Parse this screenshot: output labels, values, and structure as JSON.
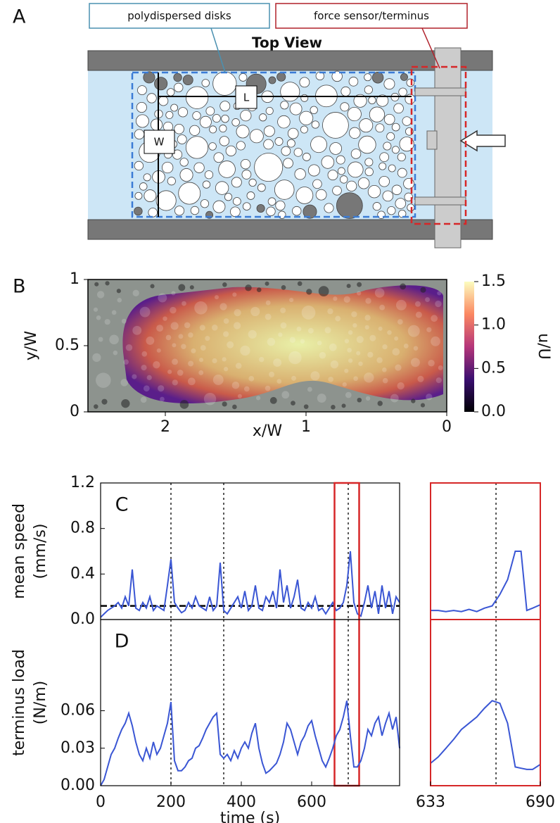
{
  "diagram": {
    "label": "A",
    "disks_label": "polydispersed disks",
    "sensor_label": "force sensor/terminus",
    "view_label": "Top View",
    "length_label": "L",
    "width_label": "W"
  },
  "chart_data": [
    {
      "type": "image",
      "label": "B",
      "xlabel": "x/W",
      "ylabel": "y/W",
      "xlim": [
        2.55,
        0
      ],
      "xticks": [
        2,
        1,
        0
      ],
      "ylim": [
        0,
        1
      ],
      "yticks": [
        0,
        0.5,
        1
      ],
      "colorbar": {
        "label": "u/U",
        "lim": [
          0,
          1.5
        ],
        "ticks": [
          {
            "value": 0,
            "label": "0.0"
          },
          0.5,
          {
            "value": 1,
            "label": "1.0"
          },
          1.5
        ]
      }
    },
    {
      "type": "line",
      "label": "C",
      "ylabel": [
        "mean speed",
        "(mm/s)"
      ],
      "x": [
        0,
        10,
        20,
        30,
        40,
        50,
        60,
        70,
        80,
        90,
        100,
        110,
        120,
        130,
        140,
        150,
        160,
        170,
        180,
        190,
        200,
        210,
        220,
        230,
        240,
        250,
        260,
        270,
        280,
        290,
        300,
        310,
        320,
        330,
        340,
        350,
        360,
        370,
        380,
        390,
        400,
        410,
        420,
        430,
        440,
        450,
        460,
        470,
        480,
        490,
        500,
        510,
        520,
        530,
        540,
        550,
        560,
        570,
        580,
        590,
        600,
        610,
        620,
        630,
        640,
        650,
        660,
        670,
        680,
        690,
        700,
        710,
        720,
        730,
        740,
        750,
        760,
        770,
        780,
        790,
        800,
        810,
        820,
        830,
        840,
        850
      ],
      "series": [
        {
          "color": "#3a56d4",
          "values": [
            0.02,
            0.05,
            0.08,
            0.1,
            0.12,
            0.15,
            0.1,
            0.2,
            0.12,
            0.44,
            0.1,
            0.08,
            0.15,
            0.1,
            0.2,
            0.08,
            0.12,
            0.1,
            0.08,
            0.3,
            0.53,
            0.15,
            0.1,
            0.06,
            0.08,
            0.15,
            0.1,
            0.2,
            0.12,
            0.1,
            0.08,
            0.2,
            0.08,
            0.12,
            0.5,
            0.08,
            0.05,
            0.1,
            0.15,
            0.2,
            0.1,
            0.25,
            0.08,
            0.12,
            0.3,
            0.1,
            0.08,
            0.2,
            0.15,
            0.25,
            0.1,
            0.44,
            0.15,
            0.3,
            0.1,
            0.2,
            0.35,
            0.1,
            0.08,
            0.15,
            0.1,
            0.2,
            0.08,
            0.1,
            0.05,
            0.1,
            0.15,
            0.08,
            0.1,
            0.15,
            0.3,
            0.6,
            0.15,
            0.05,
            0.03,
            0.15,
            0.3,
            0.1,
            0.25,
            0.05,
            0.3,
            0.1,
            0.25,
            0.05,
            0.2,
            0.15
          ]
        }
      ],
      "xlim": [
        0,
        850
      ],
      "ylim": [
        0,
        1.2
      ],
      "yticks": [
        {
          "value": 0,
          "label": "0.0"
        },
        0.4,
        0.8,
        1.2
      ],
      "vlines": [
        200,
        350,
        704
      ],
      "hline": 0.12,
      "highlight": [
        665,
        735
      ],
      "highlight_color": "#d62728"
    },
    {
      "type": "line",
      "label": "D",
      "ylabel": [
        "terminus load",
        "(N/m)"
      ],
      "xlabel": "time (s)",
      "x": [
        0,
        10,
        20,
        30,
        40,
        50,
        60,
        70,
        80,
        90,
        100,
        110,
        120,
        130,
        140,
        150,
        160,
        170,
        180,
        190,
        200,
        210,
        220,
        230,
        240,
        250,
        260,
        270,
        280,
        290,
        300,
        310,
        320,
        330,
        340,
        350,
        360,
        370,
        380,
        390,
        400,
        410,
        420,
        430,
        440,
        450,
        460,
        470,
        480,
        490,
        500,
        510,
        520,
        530,
        540,
        550,
        560,
        570,
        580,
        590,
        600,
        610,
        620,
        630,
        640,
        650,
        660,
        670,
        680,
        690,
        700,
        710,
        720,
        730,
        740,
        750,
        760,
        770,
        780,
        790,
        800,
        810,
        820,
        830,
        840,
        850
      ],
      "series": [
        {
          "color": "#3a56d4",
          "values": [
            0,
            0.005,
            0.015,
            0.025,
            0.03,
            0.038,
            0.045,
            0.05,
            0.058,
            0.048,
            0.035,
            0.025,
            0.02,
            0.03,
            0.022,
            0.035,
            0.025,
            0.03,
            0.04,
            0.05,
            0.067,
            0.02,
            0.012,
            0.012,
            0.015,
            0.02,
            0.022,
            0.03,
            0.032,
            0.038,
            0.045,
            0.05,
            0.055,
            0.058,
            0.025,
            0.022,
            0.025,
            0.02,
            0.028,
            0.022,
            0.03,
            0.035,
            0.03,
            0.042,
            0.05,
            0.03,
            0.018,
            0.01,
            0.012,
            0.015,
            0.018,
            0.025,
            0.035,
            0.05,
            0.045,
            0.035,
            0.025,
            0.035,
            0.04,
            0.048,
            0.052,
            0.04,
            0.03,
            0.02,
            0.015,
            0.022,
            0.03,
            0.04,
            0.045,
            0.055,
            0.068,
            0.04,
            0.015,
            0.015,
            0.02,
            0.03,
            0.045,
            0.04,
            0.05,
            0.055,
            0.04,
            0.05,
            0.058,
            0.045,
            0.055,
            0.03
          ]
        }
      ],
      "xlim": [
        0,
        850
      ],
      "xticks": [
        0,
        200,
        400,
        600
      ],
      "ylim": [
        0,
        0.133
      ],
      "yticks": [
        {
          "value": 0,
          "label": "0.00"
        },
        0.03,
        0.06
      ],
      "vlines": [
        200,
        350,
        704
      ]
    },
    {
      "type": "line",
      "x": [
        633,
        637,
        641,
        645,
        649,
        653,
        657,
        661,
        665,
        669,
        673,
        677,
        680,
        683,
        686,
        690
      ],
      "series": [
        {
          "color": "#3a56d4",
          "values": [
            0.08,
            0.08,
            0.07,
            0.08,
            0.07,
            0.09,
            0.07,
            0.1,
            0.12,
            0.22,
            0.35,
            0.6,
            0.6,
            0.08,
            0.1,
            0.13
          ]
        }
      ],
      "xlim": [
        633,
        690
      ],
      "ylim": [
        0,
        1.2
      ],
      "vlines": [
        667
      ],
      "frame_color": "#d62728"
    },
    {
      "type": "line",
      "x": [
        633,
        637,
        641,
        645,
        649,
        653,
        657,
        661,
        665,
        669,
        673,
        677,
        680,
        683,
        686,
        690
      ],
      "series": [
        {
          "color": "#3a56d4",
          "values": [
            0.018,
            0.023,
            0.03,
            0.037,
            0.045,
            0.05,
            0.055,
            0.062,
            0.068,
            0.066,
            0.05,
            0.015,
            0.014,
            0.013,
            0.013,
            0.017
          ]
        }
      ],
      "xlim": [
        633,
        690
      ],
      "xticks": [
        633,
        690
      ],
      "ylim": [
        0,
        0.133
      ],
      "vlines": [
        667
      ],
      "frame_color": "#d62728"
    }
  ]
}
